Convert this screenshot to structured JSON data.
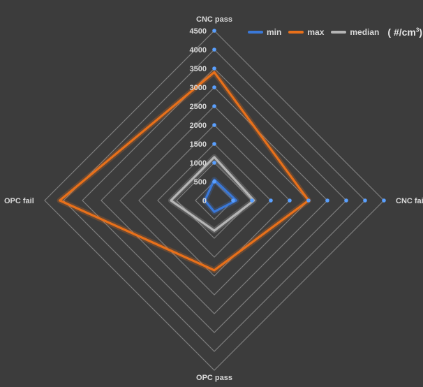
{
  "chart_data": {
    "type": "radar",
    "axes": [
      "CNC pass",
      "CNC fail",
      "OPC pass",
      "OPC fail"
    ],
    "axis_label_display": {
      "top": "CNC pass",
      "right": "CNC fai",
      "bottom": "OPC pass",
      "left": "OPC fail"
    },
    "rlim": [
      0,
      4500
    ],
    "ticks": [
      0,
      500,
      1000,
      1500,
      2000,
      2500,
      3000,
      3500,
      4000,
      4500
    ],
    "tick_labels": [
      "0",
      "500",
      "1000",
      "1500",
      "2000",
      "2500",
      "3000",
      "3500",
      "4000",
      "4500"
    ],
    "grid": true,
    "legend_position": "top-right",
    "unit_prefix": "( #/cm",
    "unit_exp": "3",
    "unit_suffix": ")",
    "series": [
      {
        "name": "min",
        "color": "#3a78d8",
        "values": [
          550,
          580,
          300,
          250
        ]
      },
      {
        "name": "max",
        "color": "#e8701a",
        "values": [
          3400,
          2500,
          1850,
          4100
        ]
      },
      {
        "name": "median",
        "color": "#b5b5b5",
        "values": [
          1150,
          1050,
          800,
          1150
        ]
      }
    ],
    "colors": {
      "background": "#3c3c3c",
      "grid": "#8a8a8a",
      "text": "#d9d9d9",
      "tick_dot": "#5aa0ff"
    }
  }
}
